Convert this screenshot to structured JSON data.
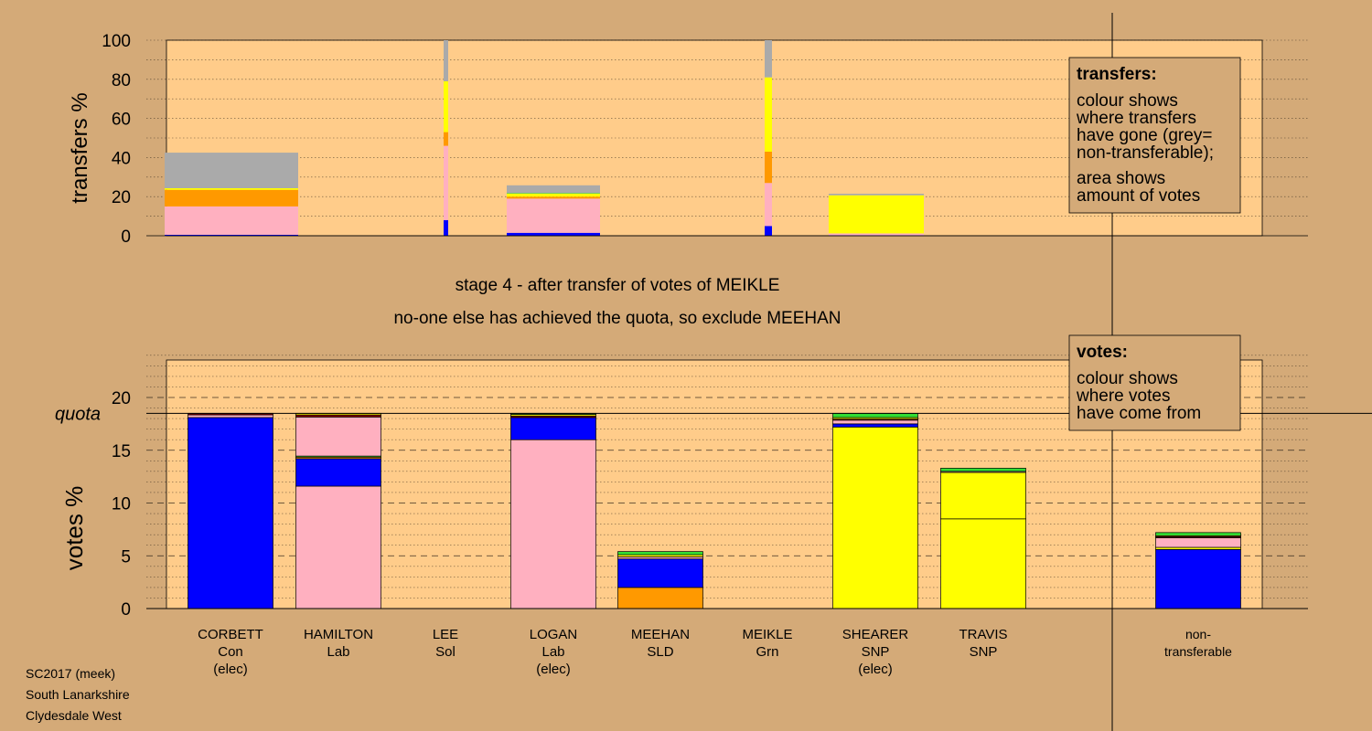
{
  "colors": {
    "background": "#d4aa78",
    "panel": "#ffcc8a",
    "Con": "#0000ff",
    "Lab": "#ffb0c0",
    "Sol": "#800000",
    "SLD": "#ff9900",
    "Grn": "#33dd33",
    "SNP": "#ffff00",
    "nontransferable": "#aaaaaa"
  },
  "header": {
    "stage_text": "stage 4 - after transfer of votes of MEIKLE",
    "action_text": "no-one else has achieved the quota, so exclude MEEHAN"
  },
  "footer": {
    "line1": "SC2017 (meek)",
    "line2": "South Lanarkshire",
    "line3": "Clydesdale West"
  },
  "legends": {
    "transfers": {
      "title": "transfers:",
      "lines": [
        "colour shows",
        "where transfers",
        "have gone (grey=",
        "non-transferable);"
      ],
      "lines2": [
        "area shows",
        "amount of votes"
      ]
    },
    "votes": {
      "title": "votes:",
      "lines": [
        "colour shows",
        "where votes",
        "have come from"
      ]
    }
  },
  "chart_data": [
    {
      "type": "bar",
      "name": "transfers",
      "ylabel": "transfers %",
      "ylim": [
        0,
        100
      ],
      "yticks": [
        0,
        20,
        40,
        60,
        80,
        100
      ],
      "bars": [
        {
          "candidate": "CORBETT",
          "segments": [
            [
              "Con",
              0.5
            ],
            [
              "Lab",
              14.5
            ],
            [
              "SLD",
              8.5
            ],
            [
              "SNP",
              0.8
            ],
            [
              "nontransferable",
              18.2
            ]
          ]
        },
        {
          "candidate": "LEE",
          "segments": [
            [
              "Con",
              8
            ],
            [
              "Lab",
              38
            ],
            [
              "SLD",
              7
            ],
            [
              "SNP",
              26
            ],
            [
              "nontransferable",
              21
            ]
          ]
        },
        {
          "candidate": "LOGAN",
          "segments": [
            [
              "Con",
              1.5
            ],
            [
              "Lab",
              17.5
            ],
            [
              "SLD",
              1
            ],
            [
              "SNP",
              1.5
            ],
            [
              "Grn",
              0.3
            ],
            [
              "nontransferable",
              4
            ]
          ]
        },
        {
          "candidate": "MEIKLE",
          "segments": [
            [
              "Con",
              5
            ],
            [
              "Lab",
              22
            ],
            [
              "SLD",
              16
            ],
            [
              "SNP",
              38
            ],
            [
              "nontransferable",
              19
            ]
          ]
        },
        {
          "candidate": "SHEARER",
          "segments": [
            [
              "Con",
              0.2
            ],
            [
              "Lab",
              1
            ],
            [
              "SNP",
              19.5
            ],
            [
              "nontransferable",
              0.8
            ]
          ]
        }
      ]
    },
    {
      "type": "bar",
      "name": "votes",
      "ylabel": "votes %",
      "ylim": [
        0,
        24
      ],
      "yticks": [
        0,
        5,
        10,
        15,
        20
      ],
      "quota": 18.5,
      "quota_label": "quota",
      "categories": [
        {
          "name": "CORBETT",
          "party": "Con",
          "note": "(elec)"
        },
        {
          "name": "HAMILTON",
          "party": "Lab",
          "note": ""
        },
        {
          "name": "LEE",
          "party": "Sol",
          "note": ""
        },
        {
          "name": "LOGAN",
          "party": "Lab",
          "note": "(elec)"
        },
        {
          "name": "MEEHAN",
          "party": "SLD",
          "note": ""
        },
        {
          "name": "MEIKLE",
          "party": "Grn",
          "note": ""
        },
        {
          "name": "SHEARER",
          "party": "SNP",
          "note": "(elec)"
        },
        {
          "name": "TRAVIS",
          "party": "SNP",
          "note": ""
        },
        {
          "name": "non-",
          "party": "transferable",
          "note": ""
        }
      ],
      "bars": [
        {
          "candidate": "CORBETT",
          "segments": [
            [
              "Con",
              18.1
            ],
            [
              "Lab",
              0.25
            ],
            [
              "Sol",
              0.15
            ]
          ]
        },
        {
          "candidate": "HAMILTON",
          "segments": [
            [
              "Lab",
              11.6
            ],
            [
              "Con",
              2.6
            ],
            [
              "SLD",
              0.15
            ],
            [
              "Grn",
              0.1
            ],
            [
              "Lab",
              3.7
            ],
            [
              "Sol",
              0.2
            ],
            [
              "SNP",
              0.15
            ]
          ]
        },
        {
          "candidate": "LEE",
          "segments": []
        },
        {
          "candidate": "LOGAN",
          "segments": [
            [
              "Lab",
              16
            ],
            [
              "Con",
              2.1
            ],
            [
              "Sol",
              0.15
            ],
            [
              "SNP",
              0.15
            ],
            [
              "Grn",
              0.1
            ]
          ]
        },
        {
          "candidate": "MEEHAN",
          "segments": [
            [
              "SLD",
              2
            ],
            [
              "Con",
              2.7
            ],
            [
              "Lab",
              0.2
            ],
            [
              "SNP",
              0.2
            ],
            [
              "Grn",
              0.3
            ]
          ]
        },
        {
          "candidate": "MEIKLE",
          "segments": []
        },
        {
          "candidate": "SHEARER",
          "segments": [
            [
              "SNP",
              17.2
            ],
            [
              "Con",
              0.3
            ],
            [
              "Lab",
              0.35
            ],
            [
              "Sol",
              0.1
            ],
            [
              "SNP",
              0.15
            ],
            [
              "Grn",
              0.4
            ]
          ]
        },
        {
          "candidate": "TRAVIS",
          "segments": [
            [
              "SNP",
              8.5
            ],
            [
              "SNP",
              4.4
            ],
            [
              "Lab",
              0.1
            ],
            [
              "Grn",
              0.3
            ]
          ]
        },
        {
          "candidate": "non-transferable",
          "segments": [
            [
              "Con",
              5.6
            ],
            [
              "SNP",
              0.2
            ],
            [
              "Lab",
              0.9
            ],
            [
              "Sol",
              0.1
            ],
            [
              "SLD",
              0.1
            ],
            [
              "Grn",
              0.3
            ]
          ]
        }
      ]
    }
  ]
}
